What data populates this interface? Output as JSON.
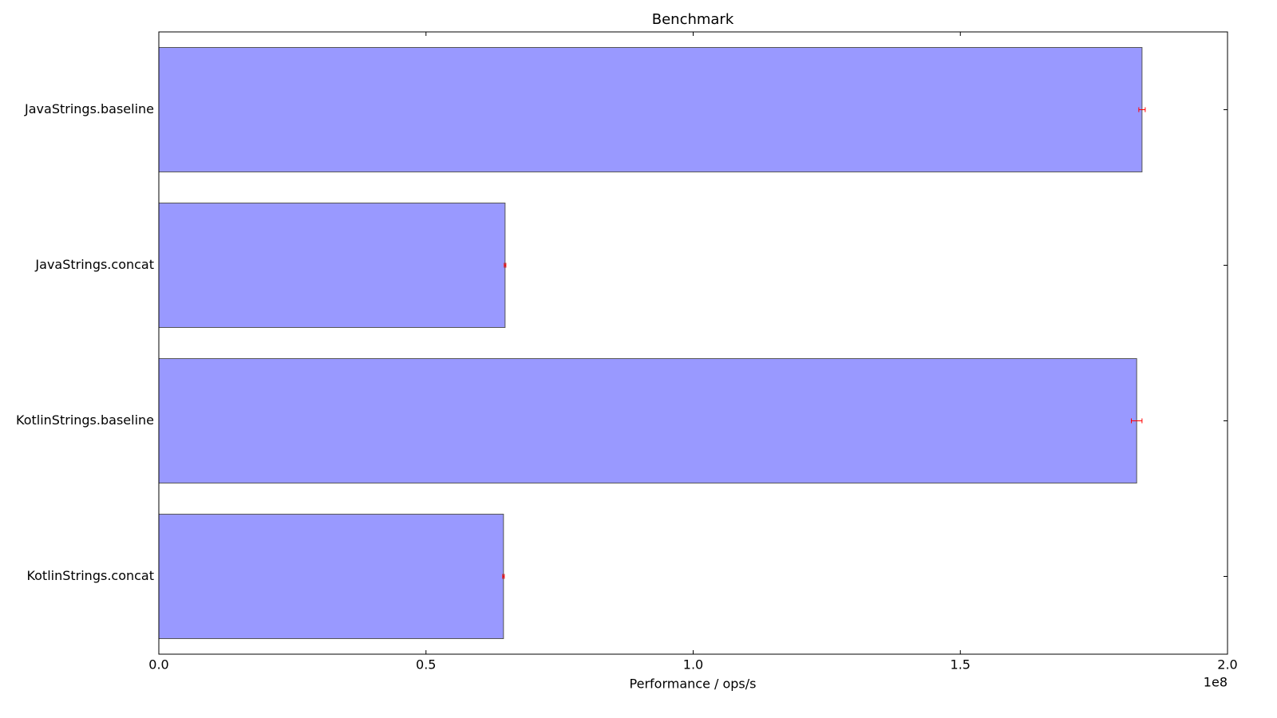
{
  "chart_data": {
    "type": "barh",
    "title": "Benchmark",
    "x_label": "Performance / ops/s",
    "x_offset_label": "1e8",
    "categories": [
      "JavaStrings.baseline",
      "JavaStrings.concat",
      "KotlinStrings.baseline",
      "KotlinStrings.concat"
    ],
    "values": [
      184000000,
      64800000,
      183000000,
      64500000
    ],
    "errors": [
      600000,
      150000,
      1000000,
      150000
    ],
    "color": "#9999ff",
    "error_color": "#ff0000",
    "xlim": [
      0,
      200000000
    ],
    "xticks": [
      {
        "value": 0,
        "label": "0.0"
      },
      {
        "value": 50000000,
        "label": "0.5"
      },
      {
        "value": 100000000,
        "label": "1.0"
      },
      {
        "value": 150000000,
        "label": "1.5"
      },
      {
        "value": 200000000,
        "label": "2.0"
      }
    ],
    "grid": false
  }
}
